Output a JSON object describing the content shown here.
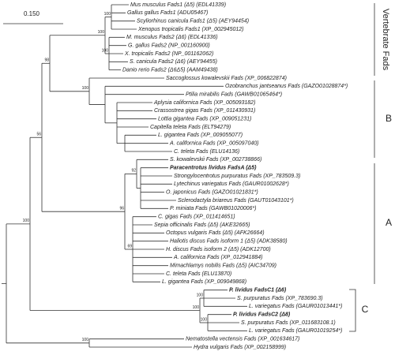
{
  "scale_label": "0.150",
  "groups": {
    "vertebrate": "Vertebrate Fads",
    "b": "B",
    "a": "A",
    "c": "C"
  },
  "leaves": [
    "Mus musculus Fads1 (Δ5) (EDL41339)",
    "Gallus gallus Fads1 (ADU05467)",
    "Scyliorhinus canicula Fads1 (Δ5) (AEY94454)",
    "Xenopus tropicalis Fads1 (XP_002945012)",
    "M. musculus Fads2 (Δ6) (EDL41336)",
    "G. gallus Fads2 (NP_001160900)",
    "X. tropicalis Fads2 (NP_001162062)",
    "S. canicula Fads2 (Δ6) (AEY94455)",
    "Danio rerio Fads2 (Δ6Δ5) (AAM49438)",
    "Saccoglossus kowalevskii Fads (XP_006822874)",
    "Ozobranchus jantseanus Fads (GAZO01028874*)",
    "Ptilia mirabilis Fads (GAWB01065464*)",
    "Aplysia californica Fads (XP_005093182)",
    "Crassostrea gigas Fads (XP_011430931)",
    "Lottia gigantea Fads (XP_009051231)",
    "Capitella teleta Fads (ELT94279)",
    "L. gigantea Fads (XP_009055077)",
    "A. californica Fads (XP_005097040)",
    "C. teleta Fads (ELU14136)",
    "S. kowalevskii Fads (XP_002738866)",
    "Paracentrotus lividus FadsA (Δ5)",
    "Strongylocentrotus purpuratus Fads (XP_783509.3)",
    "Lytechinus variegatus Fads (GAUR01002628*)",
    "O. japonicus Fads (GAZO01021831*)",
    "Sclerodactyla briareus Fads (GAUT01043101*)",
    "P. miniata Fads (GAWB01020006*)",
    "C. gigas Fads (XP_011414651)",
    "Sepia officinalis Fads (Δ5) (AKE32665)",
    "Octopus vulgaris Fads (Δ5) (AFK26664)",
    "Haliotis discus Fads isoform 1 (Δ5) (ADK38580)",
    "H. discus Fads isoform 2 (Δ5) (ADK12700)",
    "A. californica Fads (XP_012941884)",
    "Mimachlamys nobilis Fads (Δ5) (AIC34709)",
    "C. teleta Fads (ELU13870)",
    "L. gigantea Fads (XP_009049868)",
    "P. lividus FadsC1 (Δ6)",
    "S. purpuratus Fads (XP_783690.3)",
    "L. variegatus Fads (GAUR01013441*)",
    "P. lividus FadsC2 (Δ8)",
    "S. purpuratus Fads (XP_011683108.1)",
    "L. variegatus Fads (GAUR01019254*)",
    "Nematostella vectensis Fads (XP_001634617)",
    "Hydra vulgaris Fads (XP_002158999)"
  ],
  "bootstrap": [
    "100",
    "100",
    "100",
    "100",
    "98",
    "96",
    "92",
    "69",
    "56",
    "100",
    "100",
    "100",
    "100",
    "100"
  ]
}
